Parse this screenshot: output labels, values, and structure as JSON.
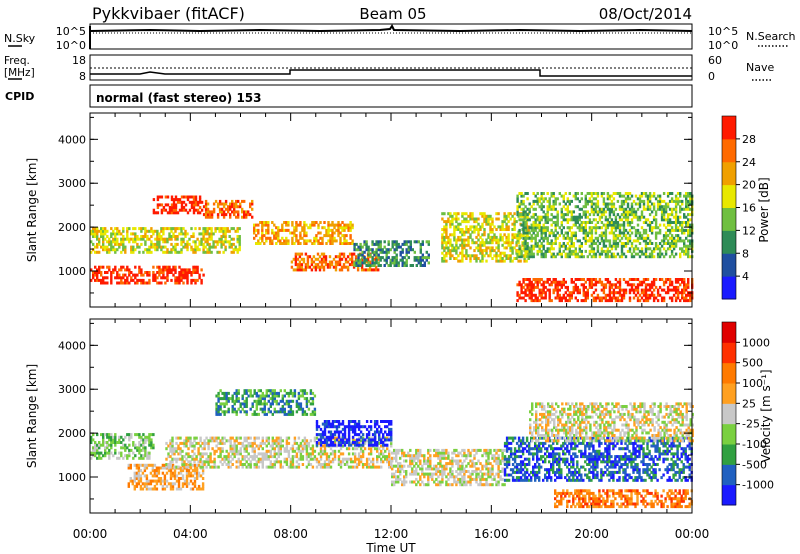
{
  "header": {
    "station": "Pykkvibaer (fitACF)",
    "beam": "Beam 05",
    "date": "08/Oct/2014"
  },
  "noise_panel": {
    "left_label": "N.Sky",
    "left_ticks": [
      "10^5",
      "10^0"
    ],
    "right_ticks": [
      "10^5",
      "10^0"
    ],
    "right_label": "N.Search"
  },
  "freq_panel": {
    "left_label_line1": "Freq.",
    "left_label_line2": "[MHz]",
    "left_ticks": [
      "18",
      "8"
    ],
    "right_ticks": [
      "60",
      "0"
    ],
    "right_label": "Nave"
  },
  "cpid_panel": {
    "label": "CPID",
    "text": "normal (fast stereo) 153"
  },
  "x_axis": {
    "label": "Time UT",
    "ticks": [
      "00:00",
      "04:00",
      "08:00",
      "12:00",
      "16:00",
      "20:00",
      "00:00"
    ]
  },
  "colors": {
    "power_scale": [
      "#1a1aff",
      "#1f4fa0",
      "#2e8b57",
      "#6fbf40",
      "#e8e800",
      "#f0a000",
      "#ff6a00",
      "#ff1a00"
    ],
    "velocity_scale": [
      "#1a1aff",
      "#2060c0",
      "#30a040",
      "#7ad040",
      "#c8c8c8",
      "#ffa020",
      "#ff7a00",
      "#ff3000",
      "#e00000"
    ]
  },
  "chart_data": [
    {
      "type": "heatmap",
      "title": "",
      "xlabel": "",
      "ylabel": "Slant Range [km]",
      "y_ticks": [
        "1000",
        "2000",
        "3000",
        "4000"
      ],
      "ylim": [
        180,
        4600
      ],
      "colorbar_label": "Power [dB]",
      "colorbar_ticks": [
        "4",
        "8",
        "12",
        "16",
        "20",
        "24",
        "28"
      ],
      "echo_regions": [
        {
          "t0": 0.0,
          "t1": 4.5,
          "r0": 700,
          "r1": 1100,
          "level": 7
        },
        {
          "t0": 0.0,
          "t1": 6.0,
          "r0": 1400,
          "r1": 2000,
          "level": 4
        },
        {
          "t0": 2.5,
          "t1": 4.5,
          "r0": 2300,
          "r1": 2700,
          "level": 7
        },
        {
          "t0": 4.5,
          "t1": 6.5,
          "r0": 2200,
          "r1": 2600,
          "level": 6
        },
        {
          "t0": 6.5,
          "t1": 10.5,
          "r0": 1600,
          "r1": 2100,
          "level": 5
        },
        {
          "t0": 8.0,
          "t1": 11.5,
          "r0": 1000,
          "r1": 1400,
          "level": 6
        },
        {
          "t0": 10.5,
          "t1": 13.5,
          "r0": 1100,
          "r1": 1700,
          "level": 2
        },
        {
          "t0": 14.0,
          "t1": 17.5,
          "r0": 1200,
          "r1": 2300,
          "level": 4
        },
        {
          "t0": 17.0,
          "t1": 24.0,
          "r0": 300,
          "r1": 800,
          "level": 7
        },
        {
          "t0": 17.0,
          "t1": 24.0,
          "r0": 1300,
          "r1": 2800,
          "level": 3
        }
      ]
    },
    {
      "type": "heatmap",
      "title": "",
      "xlabel": "Time UT",
      "ylabel": "Slant Range [km]",
      "y_ticks": [
        "1000",
        "2000",
        "3000",
        "4000"
      ],
      "ylim": [
        180,
        4600
      ],
      "colorbar_label": "Velocity [m s⁻¹]",
      "colorbar_ticks": [
        "1000",
        "500",
        "100",
        "25",
        "-25",
        "-100",
        "-500",
        "-1000"
      ],
      "echo_regions": [
        {
          "t0": 0.0,
          "t1": 2.5,
          "r0": 1400,
          "r1": 2000,
          "level": 3
        },
        {
          "t0": 1.5,
          "t1": 4.5,
          "r0": 700,
          "r1": 1300,
          "level": 5
        },
        {
          "t0": 3.0,
          "t1": 12.0,
          "r0": 1200,
          "r1": 1900,
          "level": 4
        },
        {
          "t0": 5.0,
          "t1": 9.0,
          "r0": 2400,
          "r1": 3000,
          "level": 2
        },
        {
          "t0": 9.0,
          "t1": 12.0,
          "r0": 1700,
          "r1": 2300,
          "level": 0
        },
        {
          "t0": 12.0,
          "t1": 16.5,
          "r0": 800,
          "r1": 1600,
          "level": 4
        },
        {
          "t0": 16.5,
          "t1": 24.0,
          "r0": 900,
          "r1": 1900,
          "level": 1
        },
        {
          "t0": 17.5,
          "t1": 24.0,
          "r0": 1800,
          "r1": 2700,
          "level": 4
        },
        {
          "t0": 18.5,
          "t1": 24.0,
          "r0": 300,
          "r1": 700,
          "level": 6
        }
      ]
    }
  ]
}
